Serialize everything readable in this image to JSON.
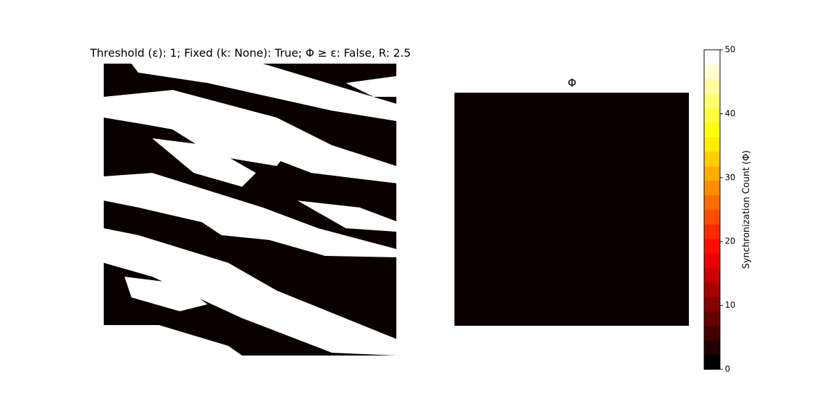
{
  "chart_data": [
    {
      "type": "image",
      "title": "Threshold (ε): 1; Fixed (k: None): True; Φ ≥  ε: False, R: 2.5"
    },
    {
      "type": "heatmap",
      "title": "Φ",
      "cmap": "hot",
      "colorbar": {
        "label": "Synchronization Count (Φ)",
        "lim": [
          0,
          50
        ],
        "ticks": [
          0,
          10,
          20,
          30,
          40,
          50
        ],
        "levels": 22
      }
    }
  ]
}
